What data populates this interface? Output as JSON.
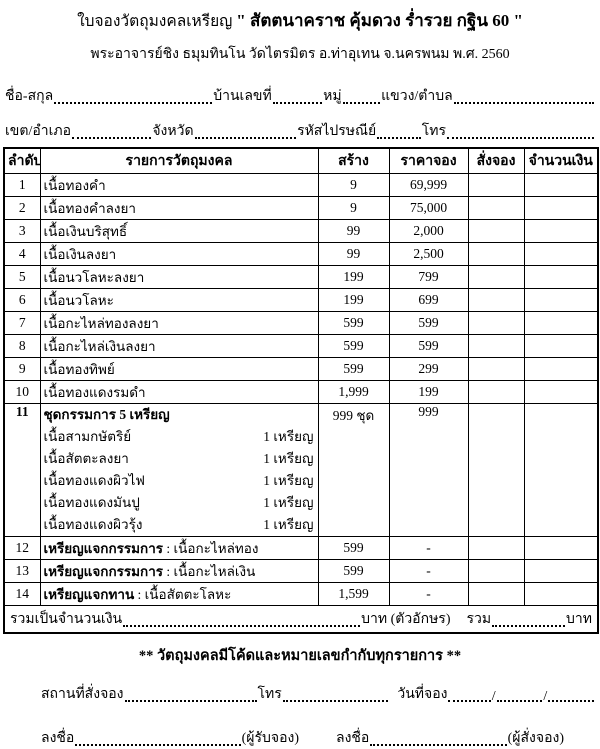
{
  "header": {
    "title_prefix": "ใบจองวัตถุมงคลเหรียญ",
    "title_quoted": "\" สัตตนาคราช คุ้มดวง ร่ำรวย กฐิน 60 \"",
    "subtitle": "พระอาจารย์ชิง ธมุมทินโน วัดไตรมิตร  อ.ท่าอุเทน  จ.นครพนม  พ.ศ. 2560"
  },
  "form": {
    "name_label": "ชื่อ-สกุล",
    "house_label": "บ้านเลขที่",
    "moo_label": "หมู่",
    "subdistrict_label": "แขวง/ตำบล",
    "district_label": "เขต/อำเภอ",
    "province_label": "จังหวัด",
    "postcode_label": "รหัสไปรษณีย์",
    "phone_label": "โทร"
  },
  "table": {
    "columns": [
      "ลำดับ",
      "รายการวัตถุมงคล",
      "สร้าง",
      "ราคาจอง",
      "สั่งจอง",
      "จำนวนเงิน"
    ],
    "rows": [
      {
        "no": "1",
        "item": "เนื้อทองคำ",
        "made": "9",
        "price": "69,999",
        "order": "",
        "amount": ""
      },
      {
        "no": "2",
        "item": "เนื้อทองคำลงยา",
        "made": "9",
        "price": "75,000",
        "order": "",
        "amount": ""
      },
      {
        "no": "3",
        "item": "เนื้อเงินบริสุทธิ์",
        "made": "99",
        "price": "2,000",
        "order": "",
        "amount": ""
      },
      {
        "no": "4",
        "item": "เนื้อเงินลงยา",
        "made": "99",
        "price": "2,500",
        "order": "",
        "amount": ""
      },
      {
        "no": "5",
        "item": "เนื้อนวโลหะลงยา",
        "made": "199",
        "price": "799",
        "order": "",
        "amount": ""
      },
      {
        "no": "6",
        "item": "เนื้อนวโลหะ",
        "made": "199",
        "price": "699",
        "order": "",
        "amount": ""
      },
      {
        "no": "7",
        "item": "เนื้อกะไหล่ทองลงยา",
        "made": "599",
        "price": "599",
        "order": "",
        "amount": ""
      },
      {
        "no": "8",
        "item": "เนื้อกะไหล่เงินลงยา",
        "made": "599",
        "price": "599",
        "order": "",
        "amount": ""
      },
      {
        "no": "9",
        "item": "เนื้อทองทิพย์",
        "made": "599",
        "price": "299",
        "order": "",
        "amount": ""
      },
      {
        "no": "10",
        "item": "เนื้อทองแดงรมดำ",
        "made": "1,999",
        "price": "199",
        "order": "",
        "amount": ""
      },
      {
        "no": "11",
        "no_bold": true,
        "item": "ชุดกรรมการ 5 เหรียญ",
        "made": "999 ชุด",
        "price": "999",
        "order": "",
        "amount": "",
        "subitems": [
          [
            "เนื้อสามกษัตริย์",
            "1 เหรียญ"
          ],
          [
            "เนื้อสัตตะลงยา",
            "1 เหรียญ"
          ],
          [
            "เนื้อทองแดงผิวไฟ",
            "1 เหรียญ"
          ],
          [
            "เนื้อทองแดงมันปู",
            "1 เหรียญ"
          ],
          [
            "เนื้อทองแดงผิวรุ้ง",
            "1 เหรียญ"
          ]
        ]
      },
      {
        "no": "12",
        "item_bold": "เหรียญแจกกรรมการ",
        "item_rest": " : เนื้อกะไหล่ทอง",
        "made": "599",
        "price": "-",
        "order": "",
        "amount": ""
      },
      {
        "no": "13",
        "item_bold": "เหรียญแจกกรรมการ",
        "item_rest": " : เนื้อกะไหล่เงิน",
        "made": "599",
        "price": "-",
        "order": "",
        "amount": ""
      },
      {
        "no": "14",
        "item_bold": "เหรียญแจกทาน",
        "item_rest": " : เนื้อสัตตะโลหะ",
        "made": "1,599",
        "price": "-",
        "order": "",
        "amount": ""
      }
    ],
    "total": {
      "label": "รวมเป็นจำนวนเงิน",
      "baht_text": "บาท (ตัวอักษร)",
      "sum_label": "รวม",
      "baht": "บาท"
    }
  },
  "note": "** วัตถุมงคลมีโค้ดและหมายเลขกำกับทุกรายการ **",
  "bottom": {
    "place_label": "สถานที่สั่งจอง",
    "phone_label": "โทร",
    "date_label": "วันที่จอง",
    "slash": "/",
    "sign_label": "ลงชื่อ",
    "receiver_role": "(ผู้รับจอง)",
    "orderer_role": "(ผู้สั่งจอง)"
  },
  "colors": {
    "ink": "#000000",
    "paper": "#ffffff"
  }
}
